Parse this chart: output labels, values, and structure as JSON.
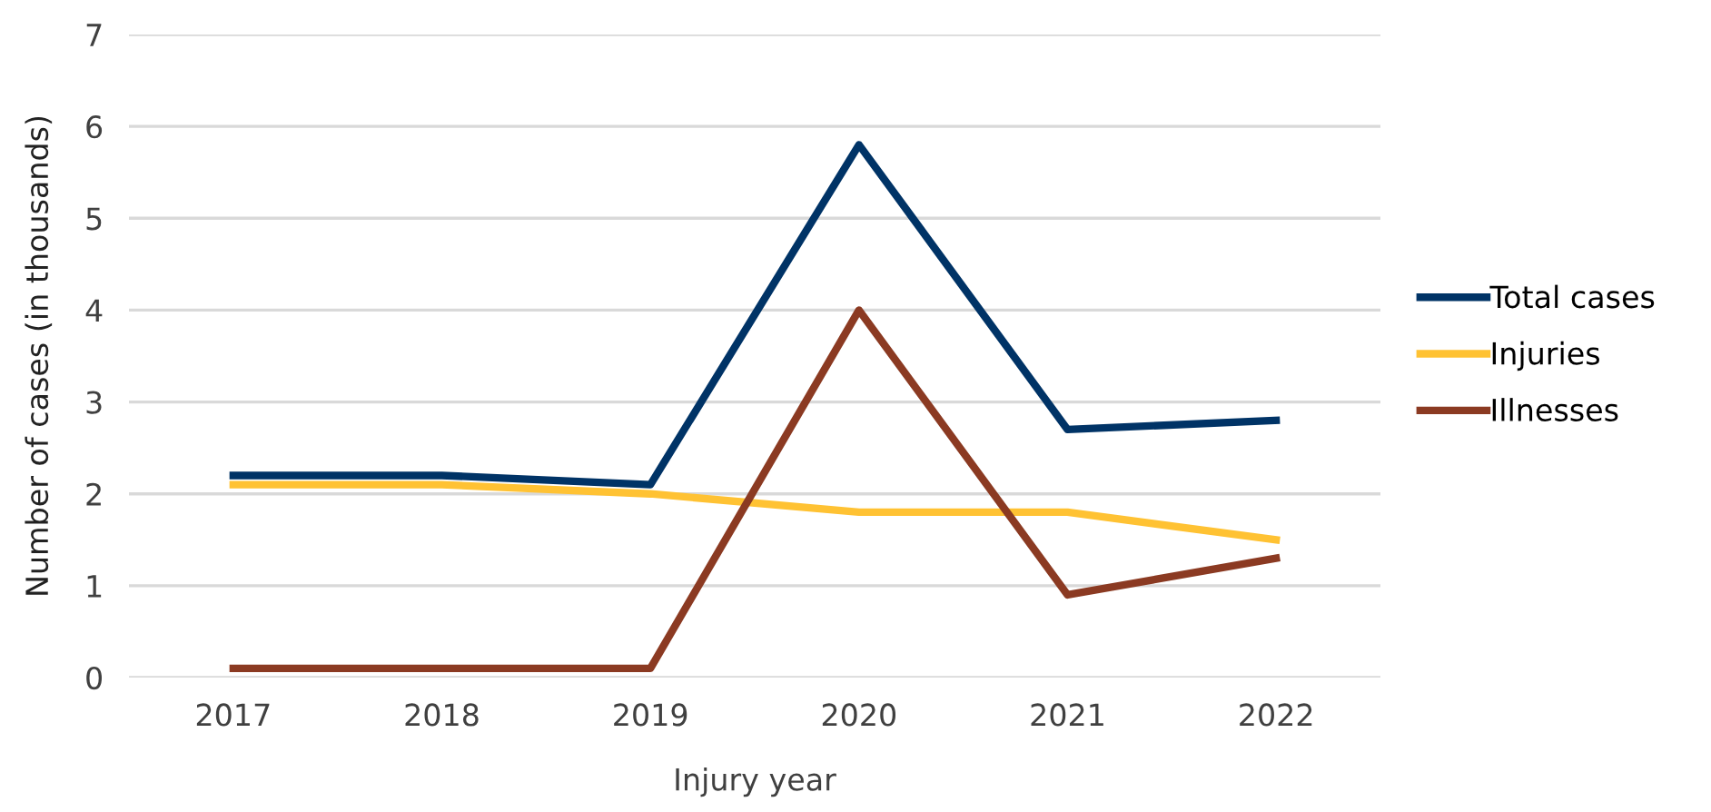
{
  "chart_data": {
    "type": "line",
    "xlabel": "Injury year",
    "ylabel": "Number of cases (in thousands)",
    "categories": [
      "2017",
      "2018",
      "2019",
      "2020",
      "2021",
      "2022"
    ],
    "series": [
      {
        "name": "Total cases",
        "color": "#003366",
        "values": [
          2.2,
          2.2,
          2.1,
          5.8,
          2.7,
          2.8
        ]
      },
      {
        "name": "Injuries",
        "color": "#ffc233",
        "values": [
          2.1,
          2.1,
          2.0,
          1.8,
          1.8,
          1.5
        ]
      },
      {
        "name": "Illnesses",
        "color": "#8b3a22",
        "values": [
          0.1,
          0.1,
          0.1,
          4.0,
          0.9,
          1.3
        ]
      }
    ],
    "ylim": [
      0,
      7
    ],
    "yticks": [
      0,
      1,
      2,
      3,
      4,
      5,
      6,
      7
    ],
    "grid": "y",
    "legend": "right",
    "marker": "none",
    "line_style": "solid"
  }
}
